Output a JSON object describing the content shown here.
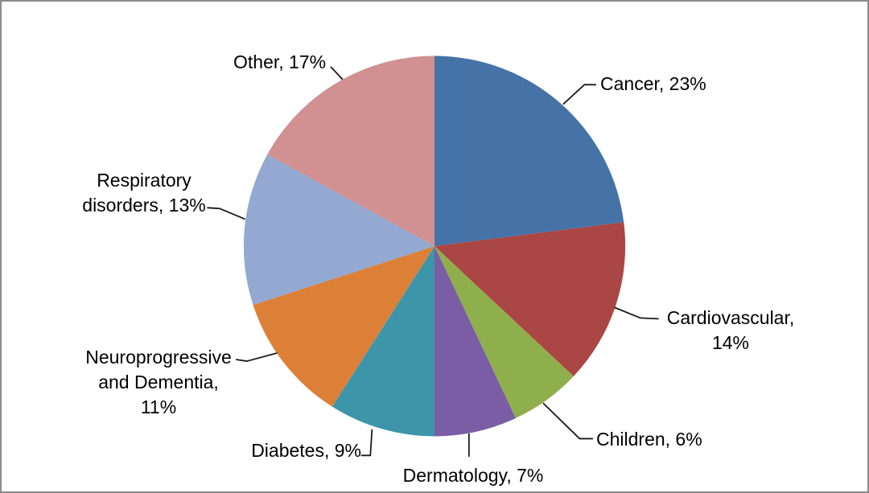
{
  "frame": {
    "background": "#FFFFFF",
    "border_color": "#8C8C8C"
  },
  "chart_data": {
    "type": "pie",
    "title": "",
    "unit": "%",
    "start_angle_deg": 0,
    "direction": "clockwise",
    "legend": "none",
    "label_style": "outside-with-leader-lines",
    "categories": [
      "Cancer",
      "Cardiovascular",
      "Children",
      "Dermatology",
      "Diabetes",
      "Neuroprogressive and Dementia",
      "Respiratory disorders",
      "Other"
    ],
    "values": [
      23,
      14,
      6,
      7,
      9,
      11,
      13,
      17
    ],
    "slices": [
      {
        "label": "Cancer",
        "value": 23,
        "color": "#4573A7",
        "display": "Cancer, 23%"
      },
      {
        "label": "Cardiovascular",
        "value": 14,
        "color": "#AA4643",
        "display": "Cardiovascular,\n14%"
      },
      {
        "label": "Children",
        "value": 6,
        "color": "#8FAE4C",
        "display": "Children, 6%"
      },
      {
        "label": "Dermatology",
        "value": 7,
        "color": "#7A5DA5",
        "display": "Dermatology, 7%"
      },
      {
        "label": "Diabetes",
        "value": 9,
        "color": "#3D95AA",
        "display": "Diabetes, 9%"
      },
      {
        "label": "Neuroprogressive and Dementia",
        "value": 11,
        "color": "#DC8038",
        "display": "Neuroprogressive\nand Dementia,\n11%"
      },
      {
        "label": "Respiratory disorders",
        "value": 13,
        "color": "#93A9D1",
        "display": "Respiratory\ndisorders, 13%"
      },
      {
        "label": "Other",
        "value": 17,
        "color": "#D19092",
        "display": "Other, 17%"
      }
    ]
  }
}
